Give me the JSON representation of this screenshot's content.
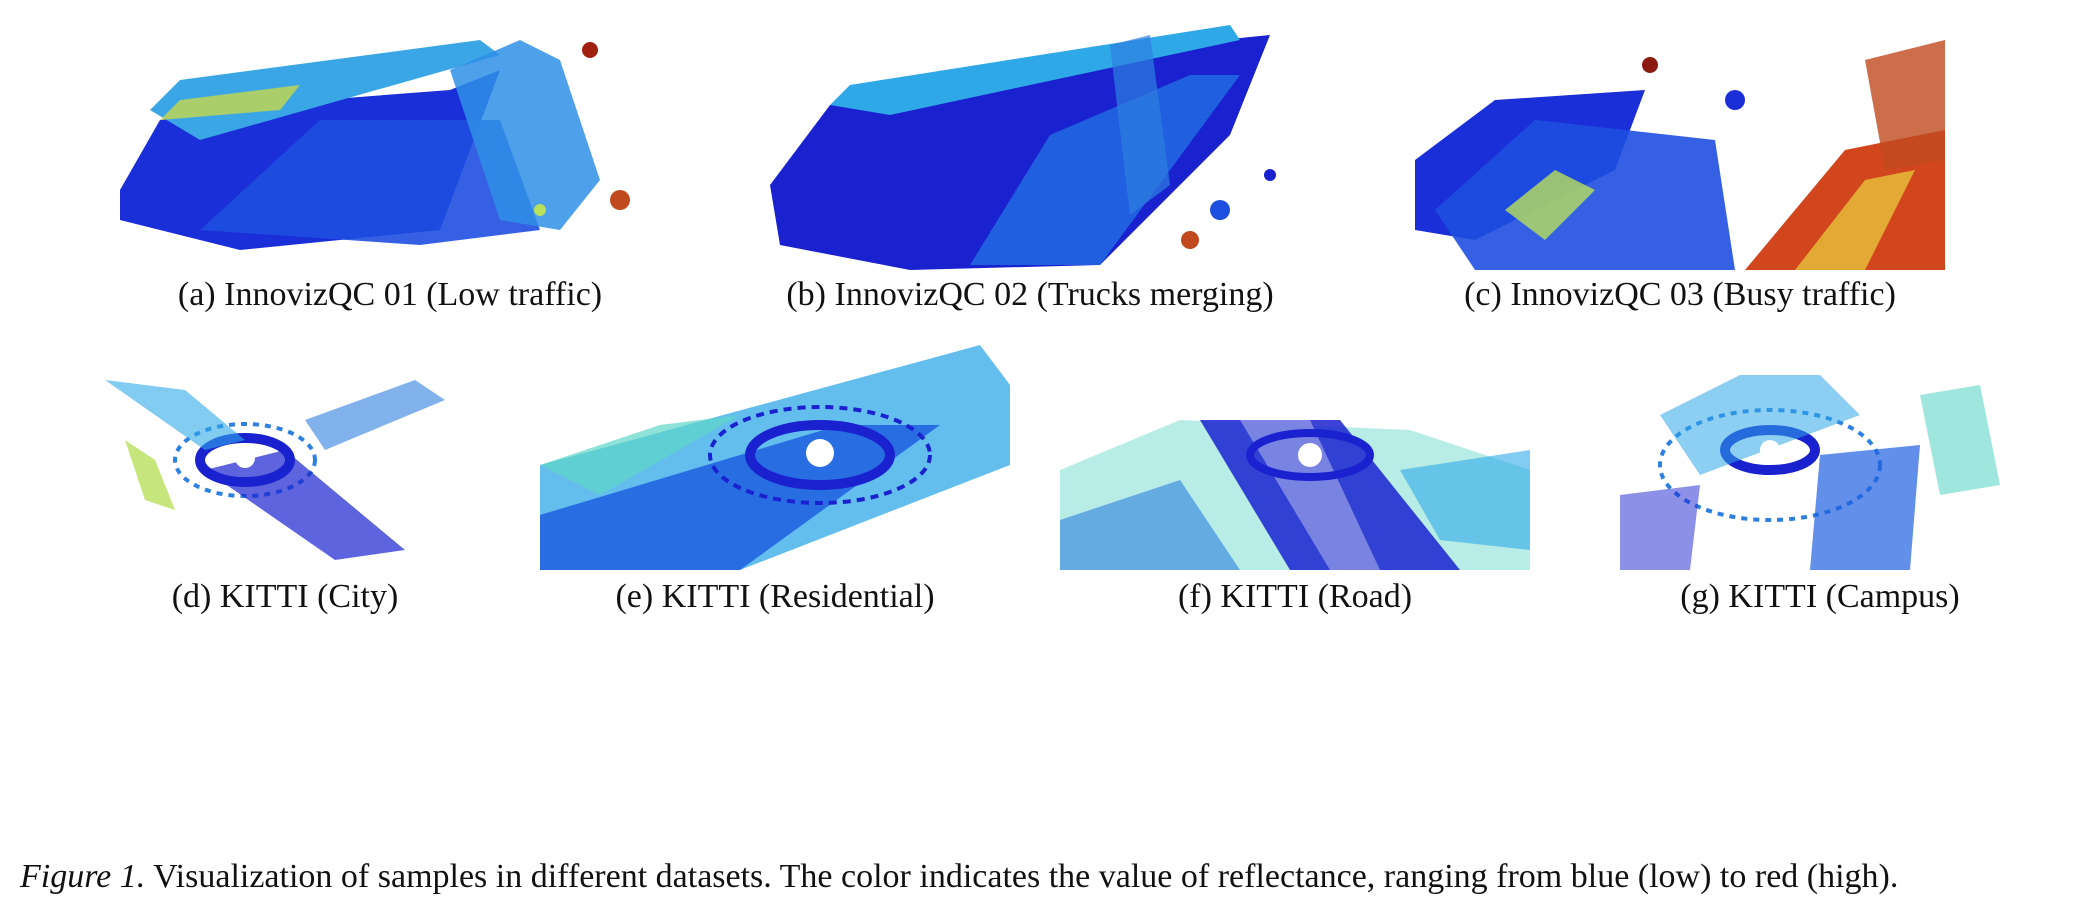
{
  "subfigures": [
    {
      "tag": "(a)",
      "caption": "InnovizQC 01 (Low traffic)",
      "scene": "innoviz-low"
    },
    {
      "tag": "(b)",
      "caption": "InnovizQC 02 (Trucks merging)",
      "scene": "innoviz-trucks"
    },
    {
      "tag": "(c)",
      "caption": "InnovizQC 03 (Busy traffic)",
      "scene": "innoviz-busy"
    },
    {
      "tag": "(d)",
      "caption": "KITTI (City)",
      "scene": "kitti-city"
    },
    {
      "tag": "(e)",
      "caption": "KITTI (Residential)",
      "scene": "kitti-residential"
    },
    {
      "tag": "(f)",
      "caption": "KITTI (Road)",
      "scene": "kitti-road"
    },
    {
      "tag": "(g)",
      "caption": "KITTI (Campus)",
      "scene": "kitti-campus"
    }
  ],
  "figure_caption": {
    "label": "Figure 1.",
    "text": "Visualization of samples in different datasets. The color indicates the value of reflectance, ranging from blue (low) to red (high)."
  },
  "colormap": [
    "#1a1ad6",
    "#1f5fe0",
    "#2fa8e8",
    "#5fd6c8",
    "#b8e05a",
    "#e6c23a",
    "#d2461e",
    "#8a1a12"
  ]
}
